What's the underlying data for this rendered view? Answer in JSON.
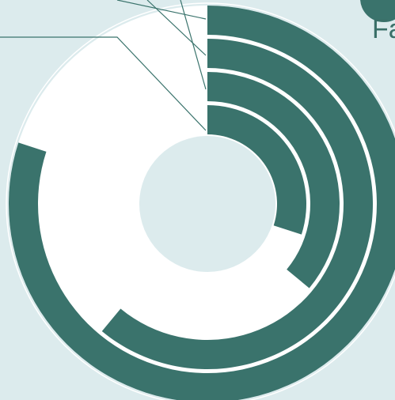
{
  "chart_data": {
    "type": "radial_bar",
    "series_color": "#3a736c",
    "track_color": "#ffffff",
    "background_color": "#dcebed",
    "center_color": "#dcebed",
    "max": 100,
    "series": [
      {
        "name": "",
        "value": 80
      },
      {
        "name": "",
        "value": 61
      },
      {
        "name": "",
        "value": 36
      },
      {
        "name": "",
        "value": 30
      }
    ]
  },
  "clipped_text": "Fa"
}
